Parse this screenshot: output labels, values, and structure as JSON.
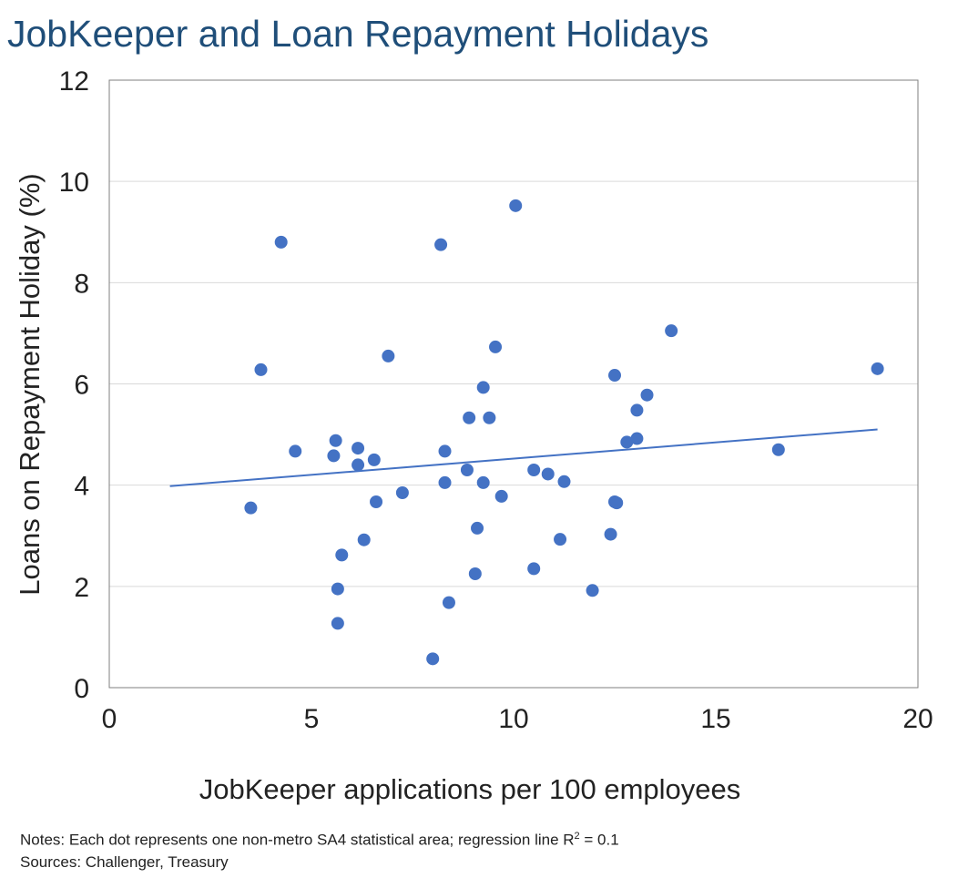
{
  "title": "JobKeeper and Loan Repayment Holidays",
  "notes": {
    "line1_prefix": "Notes: Each dot represents one non-metro SA4 statistical area; regression line R",
    "line1_sup": "2",
    "line1_suffix": " = 0.1",
    "line2": "Sources: Challenger, Treasury"
  },
  "colors": {
    "points": "#4472c4",
    "line": "#4472c4",
    "grid": "#d9d9d9",
    "title": "#1f4e79"
  },
  "chart_data": {
    "type": "scatter",
    "title": "JobKeeper and Loan Repayment Holidays",
    "xlabel": "JobKeeper applications per 100 employees",
    "ylabel": "Loans on Repayment Holiday (%)",
    "xlim": [
      0,
      20
    ],
    "ylim": [
      0,
      12
    ],
    "xticks": [
      "0",
      "5",
      "10",
      "15",
      "20"
    ],
    "yticks": [
      "0",
      "2",
      "4",
      "6",
      "8",
      "10",
      "12"
    ],
    "grid": "horizontal",
    "points": [
      [
        3.5,
        3.55
      ],
      [
        3.75,
        6.28
      ],
      [
        4.25,
        8.8
      ],
      [
        4.6,
        4.67
      ],
      [
        5.55,
        4.58
      ],
      [
        5.6,
        4.88
      ],
      [
        5.65,
        1.95
      ],
      [
        5.65,
        1.27
      ],
      [
        5.75,
        2.62
      ],
      [
        6.15,
        4.73
      ],
      [
        6.15,
        4.4
      ],
      [
        6.3,
        2.92
      ],
      [
        6.55,
        4.5
      ],
      [
        6.6,
        3.67
      ],
      [
        6.9,
        6.55
      ],
      [
        7.25,
        3.85
      ],
      [
        8.0,
        0.57
      ],
      [
        8.2,
        8.75
      ],
      [
        8.3,
        4.67
      ],
      [
        8.3,
        4.05
      ],
      [
        8.4,
        1.68
      ],
      [
        8.85,
        4.3
      ],
      [
        8.9,
        5.33
      ],
      [
        9.05,
        2.25
      ],
      [
        9.1,
        3.15
      ],
      [
        9.25,
        5.93
      ],
      [
        9.25,
        4.05
      ],
      [
        9.4,
        5.33
      ],
      [
        9.55,
        6.73
      ],
      [
        9.7,
        3.78
      ],
      [
        10.05,
        9.52
      ],
      [
        10.5,
        2.35
      ],
      [
        10.5,
        4.3
      ],
      [
        10.85,
        4.22
      ],
      [
        11.15,
        2.93
      ],
      [
        11.25,
        4.07
      ],
      [
        11.95,
        1.92
      ],
      [
        12.4,
        3.03
      ],
      [
        12.5,
        3.67
      ],
      [
        12.55,
        3.65
      ],
      [
        12.5,
        6.17
      ],
      [
        12.8,
        4.85
      ],
      [
        13.05,
        4.92
      ],
      [
        13.05,
        5.48
      ],
      [
        13.3,
        5.78
      ],
      [
        13.9,
        7.05
      ],
      [
        16.55,
        4.7
      ],
      [
        19.0,
        6.3
      ]
    ],
    "regression": {
      "x": [
        1.5,
        19.0
      ],
      "y": [
        3.98,
        5.1
      ]
    }
  }
}
